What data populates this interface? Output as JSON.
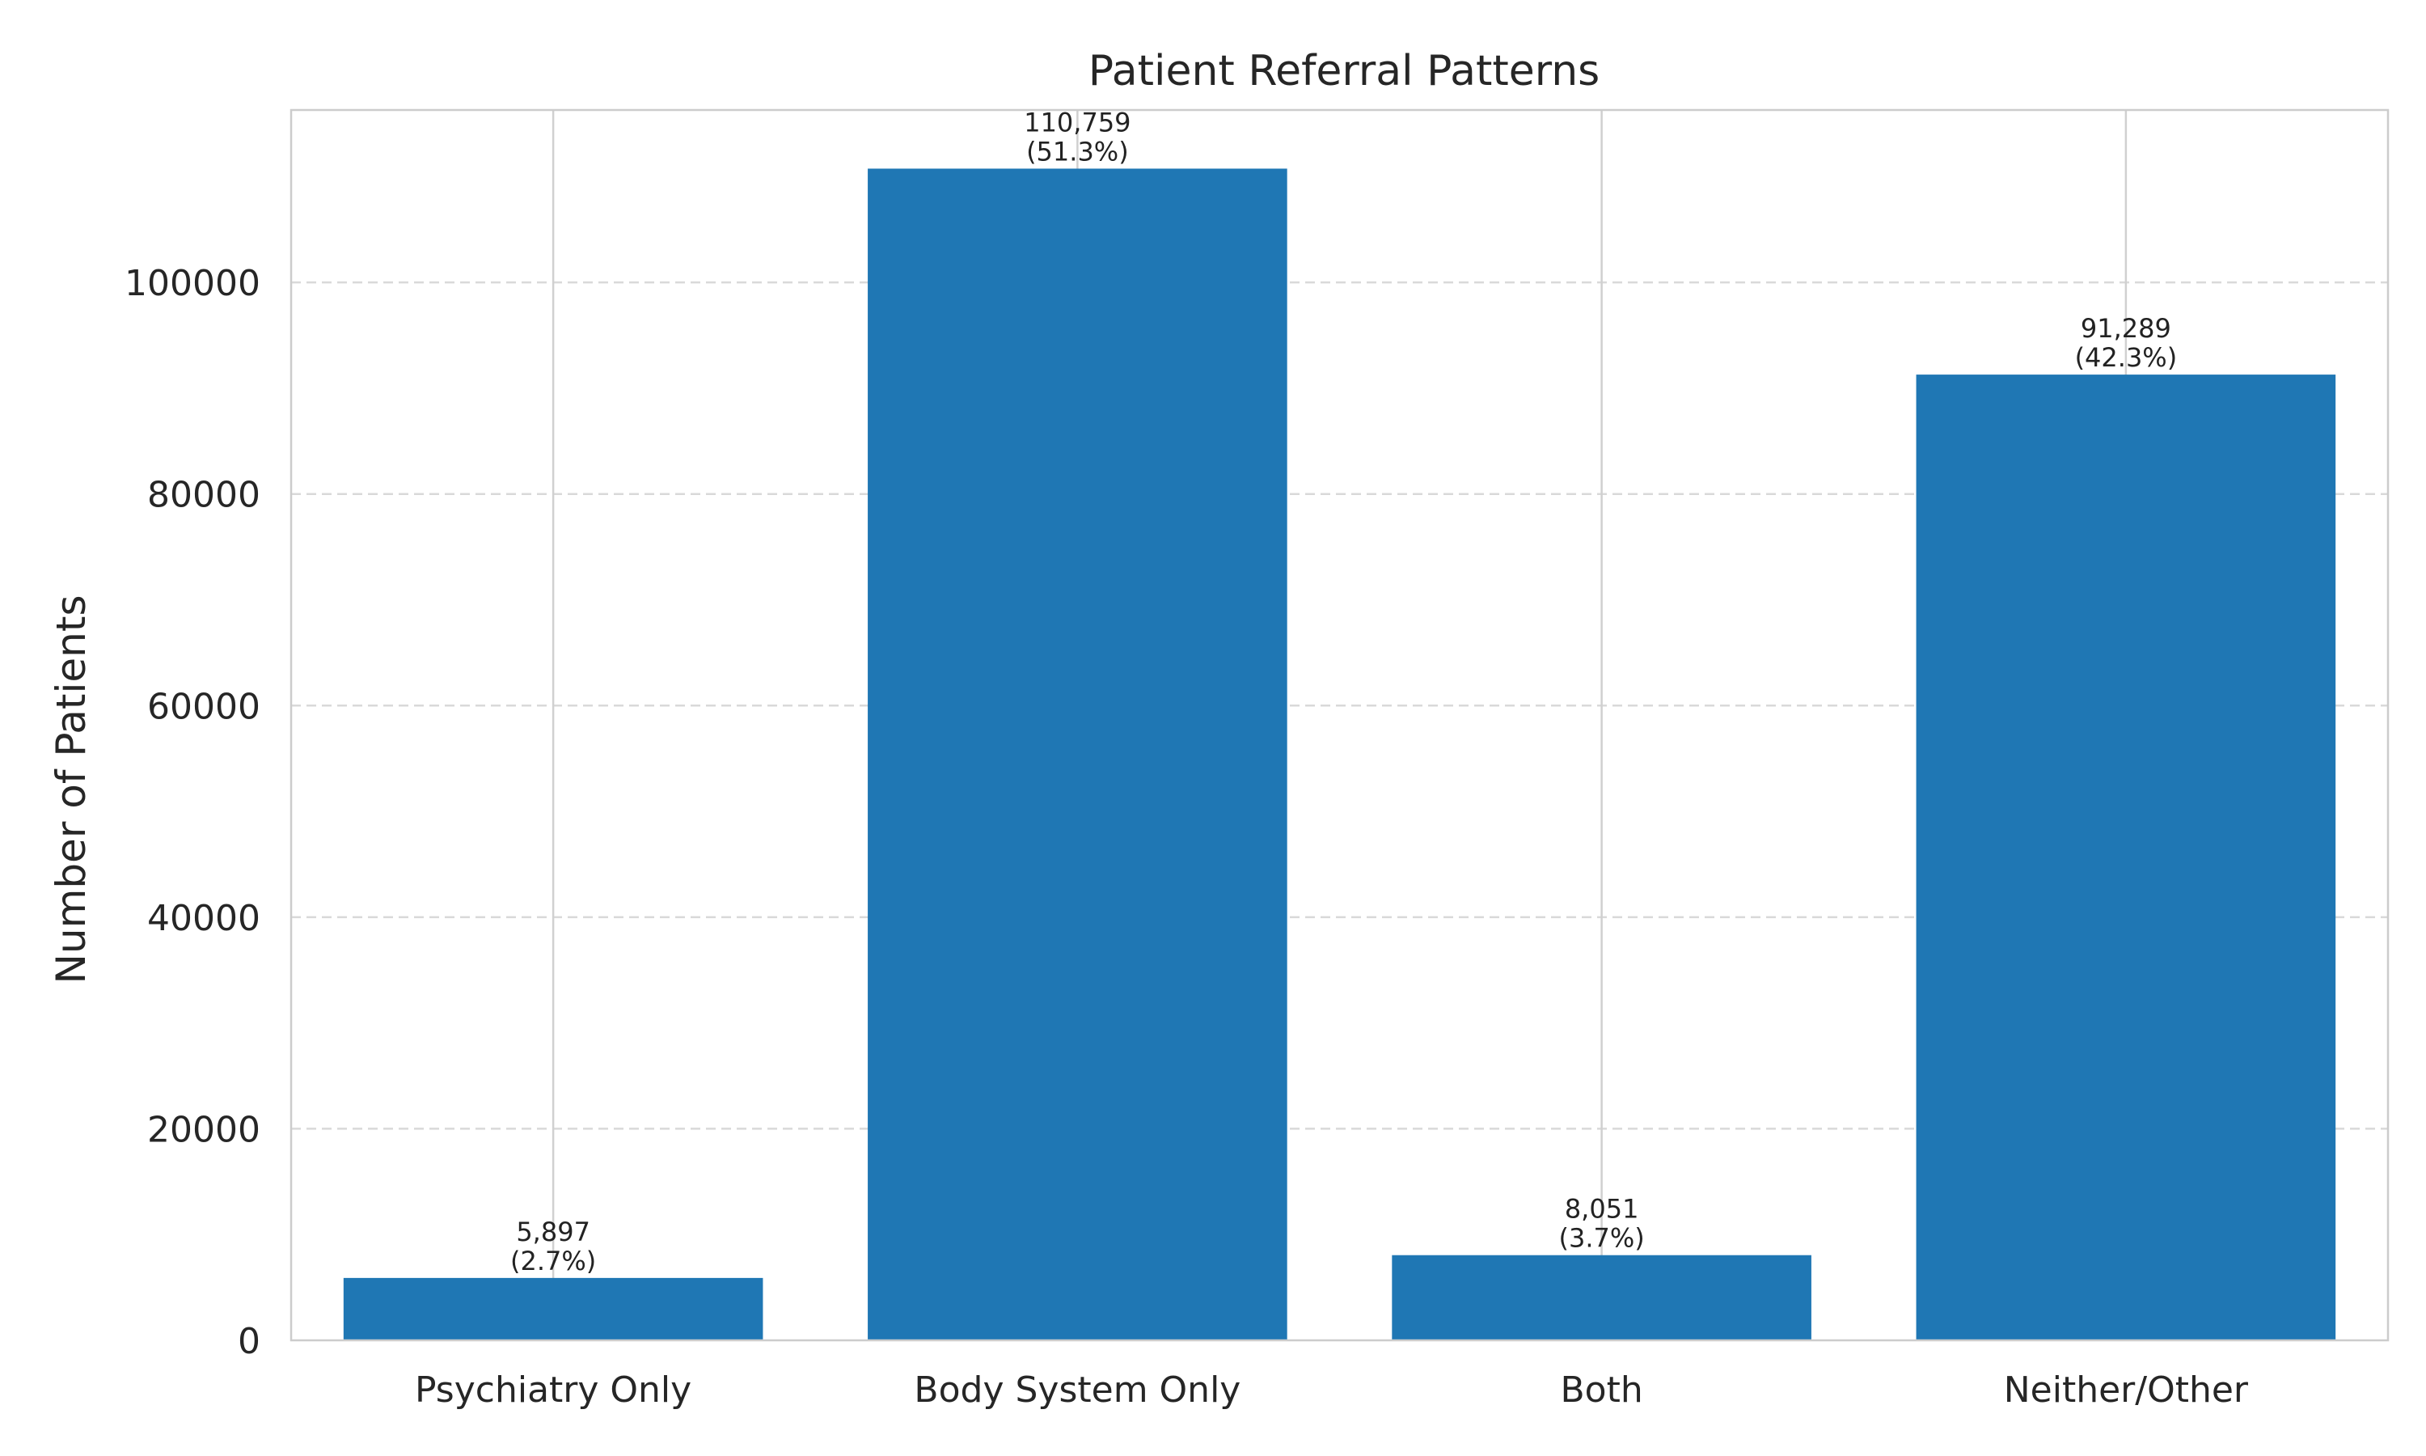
{
  "chart_data": {
    "type": "bar",
    "title": "Patient Referral Patterns",
    "xlabel": "",
    "ylabel": "Number of Patients",
    "categories": [
      "Psychiatry Only",
      "Body System Only",
      "Both",
      "Neither/Other"
    ],
    "values": [
      5897,
      110759,
      8051,
      91289
    ],
    "value_labels": [
      "5,897",
      "110,759",
      "8,051",
      "91,289"
    ],
    "percent_labels": [
      "(2.7%)",
      "(51.3%)",
      "(3.7%)",
      "(42.3%)"
    ],
    "yticks": [
      0,
      20000,
      40000,
      60000,
      80000,
      100000
    ],
    "ylim": [
      0,
      116300
    ],
    "grid": true,
    "bar_color": "#1f77b4"
  }
}
